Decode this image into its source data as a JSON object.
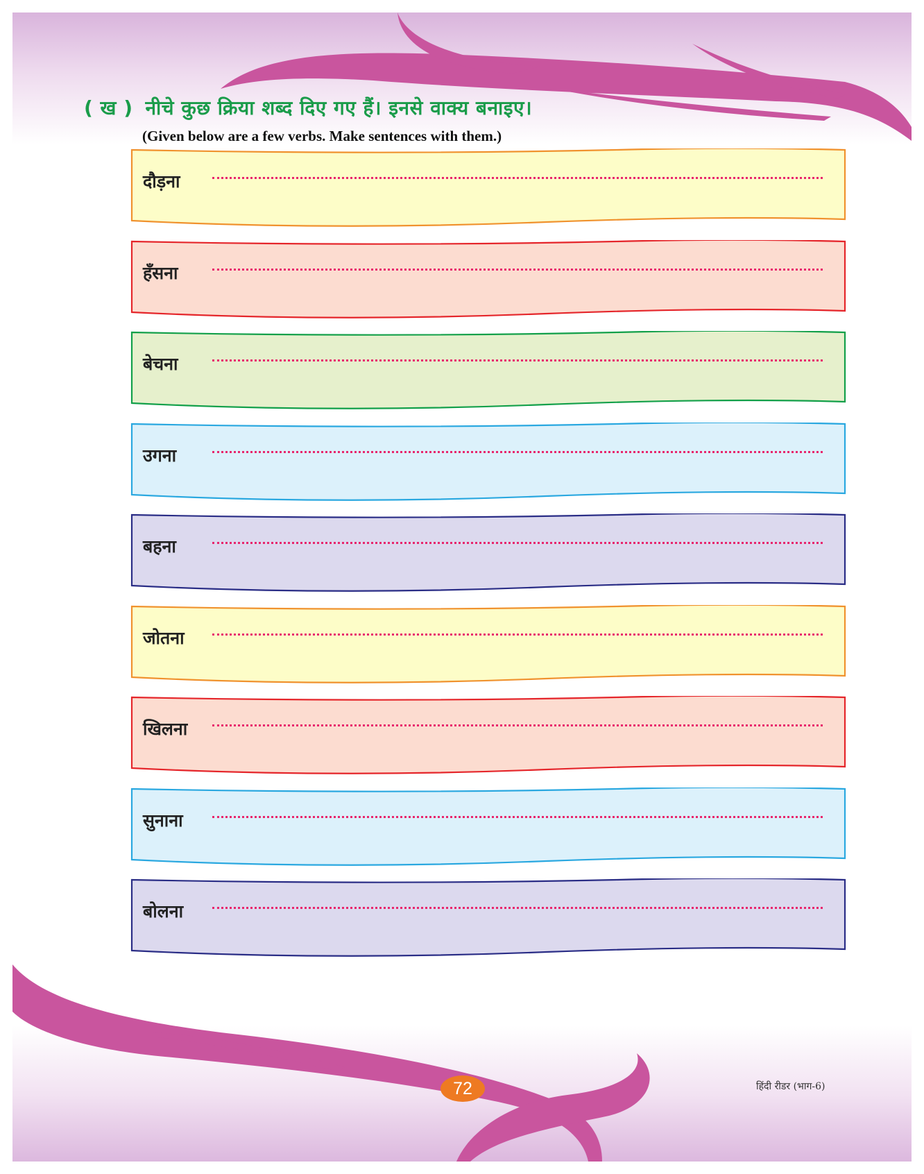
{
  "exercise": {
    "marker": "( ख )",
    "instruction_hindi": "नीचे कुछ क्रिया शब्द दिए गए हैं। इनसे वाक्य बनाइए।",
    "instruction_english": "(Given below are a few verbs. Make sentences with them.)"
  },
  "verbs": [
    {
      "word": "दौड़ना",
      "fill": "#fdfdc8",
      "stroke": "#f0922e"
    },
    {
      "word": "हँसना",
      "fill": "#fcdcd0",
      "stroke": "#e5262b"
    },
    {
      "word": "बेचना",
      "fill": "#e6f0cc",
      "stroke": "#13a04a"
    },
    {
      "word": "उगना",
      "fill": "#dcf1fb",
      "stroke": "#2aa8e0"
    },
    {
      "word": "बहना",
      "fill": "#dcd9ee",
      "stroke": "#2a2d86"
    },
    {
      "word": "जोतना",
      "fill": "#fdfdc8",
      "stroke": "#f0922e"
    },
    {
      "word": "खिलना",
      "fill": "#fcdcd0",
      "stroke": "#e5262b"
    },
    {
      "word": "सुनाना",
      "fill": "#dcf1fb",
      "stroke": "#2aa8e0"
    },
    {
      "word": "बोलना",
      "fill": "#dcd9ee",
      "stroke": "#2a2d86"
    }
  ],
  "footer": {
    "page_number": "72",
    "book_title": "हिंदी रीडर (भाग-6)"
  },
  "colors": {
    "heading": "#1a9c4a",
    "decorative_swoosh": "#c9559e",
    "dotted_line": "#e8266d",
    "page_number_badge": "#ee7a22"
  }
}
